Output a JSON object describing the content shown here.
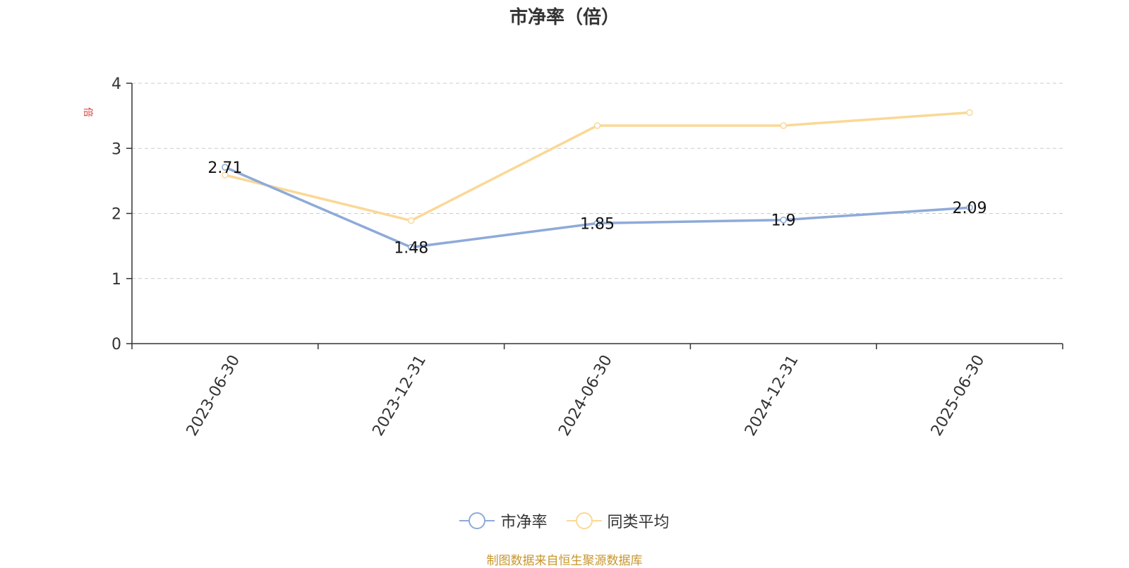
{
  "chart_data": {
    "type": "line",
    "title": "市净率（倍）",
    "ylabel": "倍",
    "categories": [
      "2023-06-30",
      "2023-12-31",
      "2024-06-30",
      "2024-12-31",
      "2025-06-30"
    ],
    "ylim": [
      0,
      4
    ],
    "yticks": [
      0,
      1,
      2,
      3,
      4
    ],
    "grid": true,
    "legend_position": "bottom",
    "series": [
      {
        "name": "市净率",
        "values": [
          2.71,
          1.48,
          1.85,
          1.9,
          2.09
        ],
        "color": "#8eaad8",
        "labels": [
          "2.71",
          "1.48",
          "1.85",
          "1.9",
          "2.09"
        ]
      },
      {
        "name": "同类平均",
        "values": [
          2.59,
          1.89,
          3.35,
          3.35,
          3.55
        ],
        "color": "#fad896"
      }
    ]
  },
  "legend": [
    "市净率",
    "同类平均"
  ],
  "source": "制图数据来自恒生聚源数据库"
}
